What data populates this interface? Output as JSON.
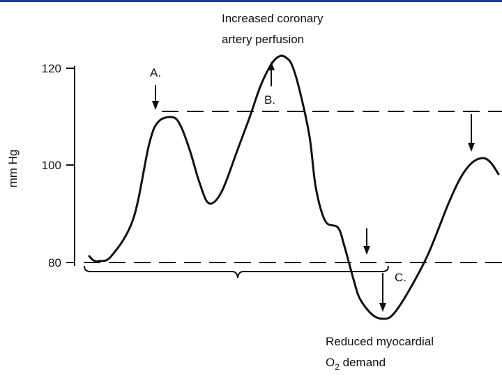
{
  "chart_data": {
    "type": "line",
    "ylabel": "mm Hg",
    "yticks": [
      "120",
      "100",
      "80"
    ],
    "ytick_values": [
      120,
      100,
      80
    ],
    "ylim": [
      66,
      124
    ],
    "x": [
      0,
      0.2,
      0.4,
      0.6,
      1.4,
      2.8,
      3.8,
      4.4,
      5.3,
      5.8,
      6.4,
      7.0,
      7.6,
      8.4,
      9.4,
      10.2,
      10.9,
      11.6,
      12.1,
      12.5,
      12.9,
      13.4,
      14.0,
      14.4,
      15.0,
      15.8,
      16.2,
      16.8,
      17.2,
      18.0,
      18.7,
      19.3,
      20.2,
      21.5,
      22.8,
      23.6,
      24.3,
      25.0,
      25.5,
      26.0
    ],
    "y": [
      81.3,
      80.6,
      80.3,
      80.3,
      81.3,
      89.0,
      104.3,
      109.0,
      109.9,
      108.2,
      103.0,
      96.5,
      92.2,
      94.5,
      103.0,
      110.0,
      116.5,
      121.0,
      122.5,
      122.2,
      120.5,
      115.0,
      105.8,
      95.3,
      88.5,
      87.2,
      83.5,
      76.4,
      72.5,
      69.2,
      68.4,
      69.3,
      73.6,
      81.5,
      92.0,
      97.5,
      100.5,
      101.5,
      100.6,
      98.2
    ],
    "xlim": [
      0,
      26
    ],
    "grid": false,
    "reference_lines": [
      110.8,
      80.2
    ],
    "annotations": {
      "top_line1": "Increased coronary",
      "top_line2": "artery perfusion",
      "label_a": "A.",
      "label_b": "B.",
      "label_c": "C.",
      "bottom_line1": "Reduced myocardial",
      "bottom_line2_pre": "O",
      "bottom_line2_sub": "2",
      "bottom_line2_post": " demand"
    }
  }
}
